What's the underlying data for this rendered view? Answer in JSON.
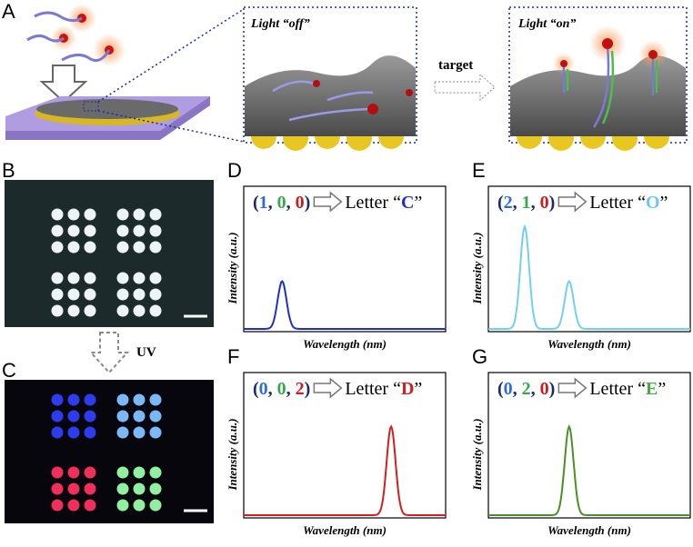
{
  "panel_a": {
    "label": "A",
    "box_off": "Light “off”",
    "box_on": "Light “on”",
    "arrow": "target"
  },
  "panel_b": {
    "label": "B"
  },
  "panel_c": {
    "label": "C",
    "arrow": "UV"
  },
  "spectra": [
    {
      "label": "D",
      "tokens": [
        "(",
        "1",
        ", ",
        "0",
        ", ",
        "0",
        ")"
      ],
      "token_colors": [
        "#1a2a6a",
        "#2c6fd1",
        "#1a2a6a",
        "#3aa84a",
        "#1a2a6a",
        "#c81e1e",
        "#1a2a6a"
      ],
      "word": "Letter “",
      "letter": "C",
      "letter_color": "#1f2fc8",
      "close": "”",
      "x_label": "Wavelength (nm)",
      "y_label": "Intensity (a.u.)",
      "curve_color": "#1f2fc8"
    },
    {
      "label": "E",
      "tokens": [
        "(",
        "2",
        ", ",
        "1",
        ", ",
        "0",
        ")"
      ],
      "token_colors": [
        "#1a2a6a",
        "#2c6fd1",
        "#1a2a6a",
        "#3aa84a",
        "#1a2a6a",
        "#c81e1e",
        "#1a2a6a"
      ],
      "word": "Letter “",
      "letter": "O",
      "letter_color": "#6cc8ee",
      "close": "”",
      "x_label": "Wavelength (nm)",
      "y_label": "Intensity (a.u.)",
      "curve_color": "#72d0ef"
    },
    {
      "label": "F",
      "tokens": [
        "(",
        "0",
        ", ",
        "0",
        ", ",
        "2",
        ")"
      ],
      "token_colors": [
        "#1a2a6a",
        "#2c6fd1",
        "#1a2a6a",
        "#3aa84a",
        "#1a2a6a",
        "#c81e1e",
        "#1a2a6a"
      ],
      "word": "Letter “",
      "letter": "D",
      "letter_color": "#d21e1e",
      "close": "”",
      "x_label": "Wavelength (nm)",
      "y_label": "Intensity (a.u.)",
      "curve_color": "#d21e1e"
    },
    {
      "label": "G",
      "tokens": [
        "(",
        "0",
        ", ",
        "2",
        ", ",
        "0",
        ")"
      ],
      "token_colors": [
        "#1a2a6a",
        "#2c6fd1",
        "#1a2a6a",
        "#3aa84a",
        "#1a2a6a",
        "#c81e1e",
        "#1a2a6a"
      ],
      "word": "Letter “",
      "letter": "E",
      "letter_color": "#4aa84a",
      "close": "”",
      "x_label": "Wavelength (nm)",
      "y_label": "Intensity (a.u.)",
      "curve_color": "#4a8f2a"
    }
  ]
}
